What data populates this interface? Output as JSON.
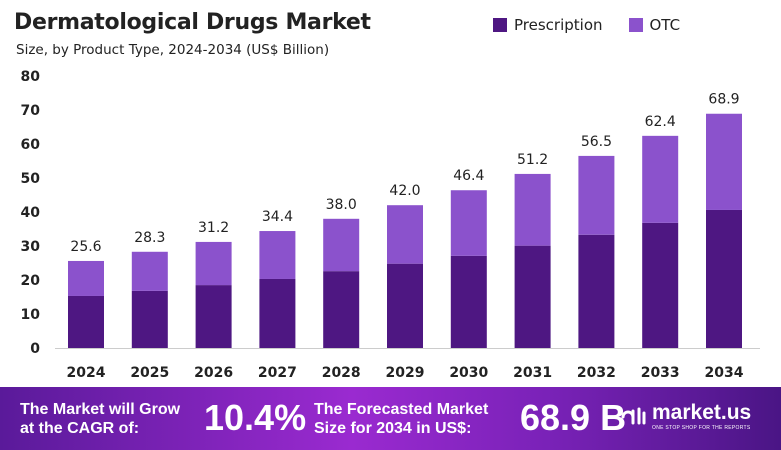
{
  "chart_data": {
    "type": "bar",
    "stacked": true,
    "title": "Dermatological Drugs Market",
    "subtitle": "Size, by Product Type, 2024-2034 (US$ Billion)",
    "xlabel": "",
    "ylabel": "",
    "ylim": [
      0,
      80
    ],
    "yticks": [
      "0",
      "10",
      "20",
      "30",
      "40",
      "50",
      "60",
      "70",
      "80"
    ],
    "grid": false,
    "legend_position": "top-right",
    "categories": [
      "2024",
      "2025",
      "2026",
      "2027",
      "2028",
      "2029",
      "2030",
      "2031",
      "2032",
      "2033",
      "2034"
    ],
    "series": [
      {
        "name": "Prescription",
        "color": "#4e1782",
        "values": [
          15.3,
          16.8,
          18.5,
          20.3,
          22.6,
          24.8,
          27.1,
          30.1,
          33.3,
          36.8,
          40.6
        ]
      },
      {
        "name": "OTC",
        "color": "#8b52cc",
        "values": [
          10.3,
          11.5,
          12.7,
          14.1,
          15.4,
          17.2,
          19.3,
          21.1,
          23.2,
          25.6,
          28.3
        ]
      }
    ],
    "totals": [
      "25.6",
      "28.3",
      "31.2",
      "34.4",
      "38.0",
      "42.0",
      "46.4",
      "51.2",
      "56.5",
      "62.4",
      "68.9"
    ]
  },
  "banner": {
    "cagr_label_1": "The Market will Grow",
    "cagr_label_2": "at the CAGR of:",
    "cagr_value": "10.4%",
    "forecast_label_1": "The Forecasted Market",
    "forecast_label_2": "Size for 2034 in US$:",
    "forecast_value": "68.9 B",
    "logo_text": "market.us",
    "logo_tagline": "ONE STOP SHOP FOR THE REPORTS"
  }
}
